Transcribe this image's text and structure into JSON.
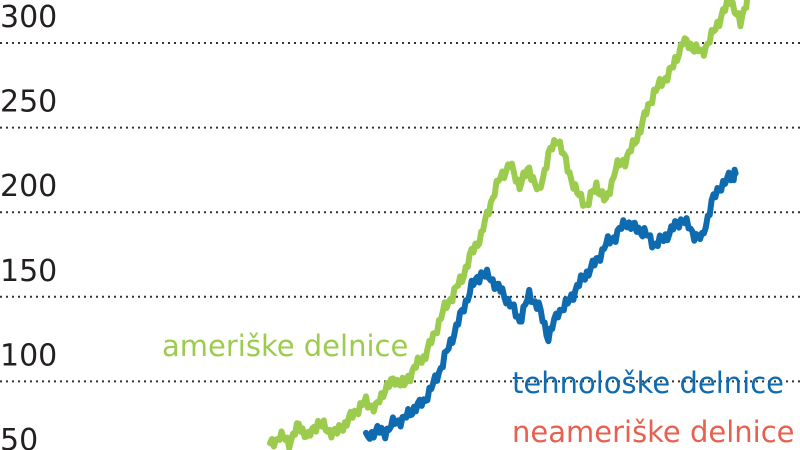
{
  "chart_data": {
    "type": "line",
    "title": "",
    "xlabel": "",
    "ylabel": "",
    "ylim": [
      40,
      315
    ],
    "yticks": [
      50,
      100,
      150,
      200,
      250,
      300
    ],
    "grid": true,
    "series": [
      {
        "name": "ameriške delnice",
        "color": "#9ccc4e",
        "points": [
          [
            0,
            46
          ],
          [
            2,
            52
          ],
          [
            4,
            48
          ],
          [
            6,
            58
          ],
          [
            8,
            51
          ],
          [
            10,
            60
          ],
          [
            12,
            55
          ],
          [
            14,
            54
          ],
          [
            16,
            60
          ],
          [
            18,
            67
          ],
          [
            20,
            72
          ],
          [
            22,
            68
          ],
          [
            24,
            80
          ],
          [
            26,
            85
          ],
          [
            28,
            82
          ],
          [
            30,
            92
          ],
          [
            32,
            98
          ],
          [
            34,
            110
          ],
          [
            36,
            125
          ],
          [
            38,
            135
          ],
          [
            40,
            145
          ],
          [
            42,
            160
          ],
          [
            44,
            170
          ],
          [
            46,
            190
          ],
          [
            48,
            205
          ],
          [
            50,
            212
          ],
          [
            52,
            200
          ],
          [
            54,
            210
          ],
          [
            56,
            195
          ],
          [
            58,
            218
          ],
          [
            60,
            228
          ],
          [
            62,
            210
          ],
          [
            64,
            195
          ],
          [
            66,
            188
          ],
          [
            68,
            200
          ],
          [
            70,
            190
          ],
          [
            72,
            210
          ],
          [
            74,
            215
          ],
          [
            76,
            225
          ],
          [
            78,
            240
          ],
          [
            80,
            255
          ],
          [
            82,
            262
          ],
          [
            84,
            270
          ],
          [
            86,
            285
          ],
          [
            88,
            282
          ],
          [
            90,
            278
          ],
          [
            92,
            288
          ],
          [
            94,
            300
          ],
          [
            96,
            310
          ],
          [
            98,
            295
          ],
          [
            100,
            318
          ]
        ]
      },
      {
        "name": "tehnološke delnice",
        "color": "#0e6bb0",
        "points": [
          [
            20,
            50
          ],
          [
            22,
            55
          ],
          [
            24,
            54
          ],
          [
            26,
            60
          ],
          [
            28,
            62
          ],
          [
            30,
            68
          ],
          [
            32,
            72
          ],
          [
            34,
            82
          ],
          [
            36,
            95
          ],
          [
            38,
            110
          ],
          [
            40,
            125
          ],
          [
            42,
            140
          ],
          [
            44,
            148
          ],
          [
            46,
            145
          ],
          [
            48,
            138
          ],
          [
            50,
            130
          ],
          [
            52,
            120
          ],
          [
            54,
            135
          ],
          [
            56,
            128
          ],
          [
            58,
            110
          ],
          [
            60,
            125
          ],
          [
            62,
            130
          ],
          [
            64,
            140
          ],
          [
            66,
            148
          ],
          [
            68,
            155
          ],
          [
            70,
            165
          ],
          [
            72,
            170
          ],
          [
            74,
            178
          ],
          [
            76,
            175
          ],
          [
            78,
            172
          ],
          [
            80,
            165
          ],
          [
            82,
            168
          ],
          [
            84,
            175
          ],
          [
            86,
            180
          ],
          [
            88,
            172
          ],
          [
            90,
            168
          ],
          [
            92,
            190
          ],
          [
            94,
            200
          ],
          [
            96,
            205
          ],
          [
            97,
            207
          ]
        ]
      },
      {
        "name": "neameriške delnice",
        "color": "#e8604f",
        "points": []
      }
    ],
    "labels": [
      {
        "text": "ameriške delnice",
        "color": "#9ccc4e"
      },
      {
        "text": "tehnološke delnice",
        "color": "#0e6bb0"
      },
      {
        "text": "neameriške delnice",
        "color": "#e8604f"
      }
    ]
  }
}
